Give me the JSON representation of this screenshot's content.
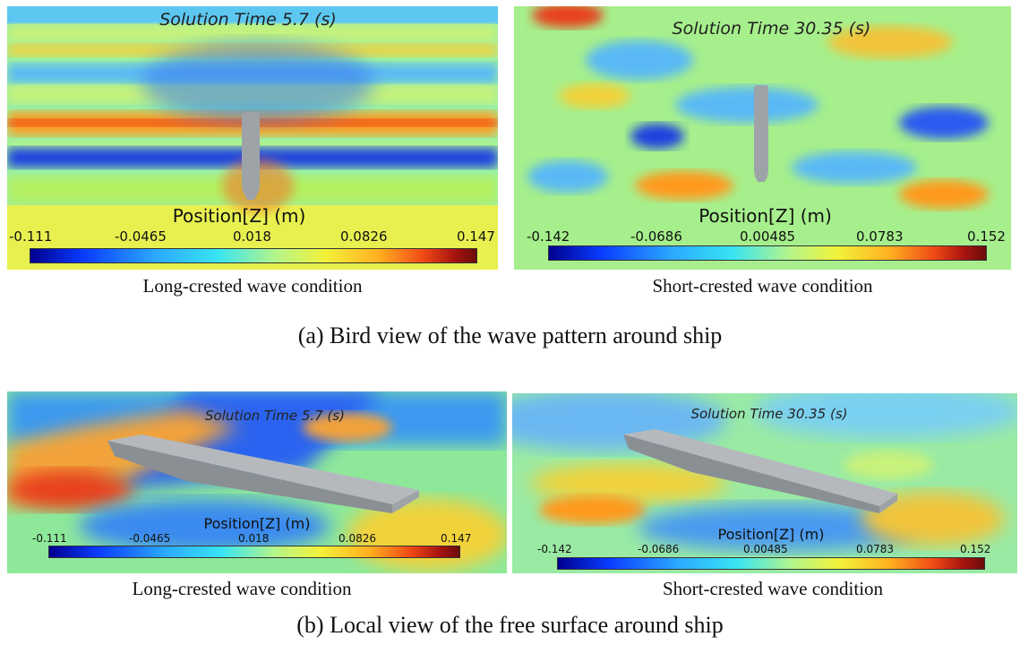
{
  "colorbar_gradient": [
    "#00008f",
    "#0a3cff",
    "#2ba8ff",
    "#38e4f2",
    "#b4f58a",
    "#f2f23a",
    "#ffb020",
    "#f04a15",
    "#a8140f",
    "#6a0c0a"
  ],
  "panels": {
    "top_left": {
      "solution_time": "Solution Time 5.7 (s)",
      "position_label": "Position[Z] (m)",
      "ticks": [
        "-0.111",
        "-0.0465",
        "0.018",
        "0.0826",
        "0.147"
      ],
      "caption": "Long-crested wave condition"
    },
    "top_right": {
      "solution_time": "Solution Time 30.35 (s)",
      "position_label": "Position[Z] (m)",
      "ticks": [
        "-0.142",
        "-0.0686",
        "0.00485",
        "0.0783",
        "0.152"
      ],
      "caption": "Short-crested wave condition"
    },
    "bottom_left": {
      "solution_time": "Solution Time 5.7 (s)",
      "position_label": "Position[Z] (m)",
      "ticks": [
        "-0.111",
        "-0.0465",
        "0.018",
        "0.0826",
        "0.147"
      ],
      "caption": "Long-crested wave condition"
    },
    "bottom_right": {
      "solution_time": "Solution Time 30.35 (s)",
      "position_label": "Position[Z] (m)",
      "ticks": [
        "-0.142",
        "-0.0686",
        "0.00485",
        "0.0783",
        "0.152"
      ],
      "caption": "Short-crested wave condition"
    }
  },
  "captions": {
    "a": "(a) Bird view of the wave pattern around ship",
    "b": "(b) Local view of the free surface around ship"
  }
}
